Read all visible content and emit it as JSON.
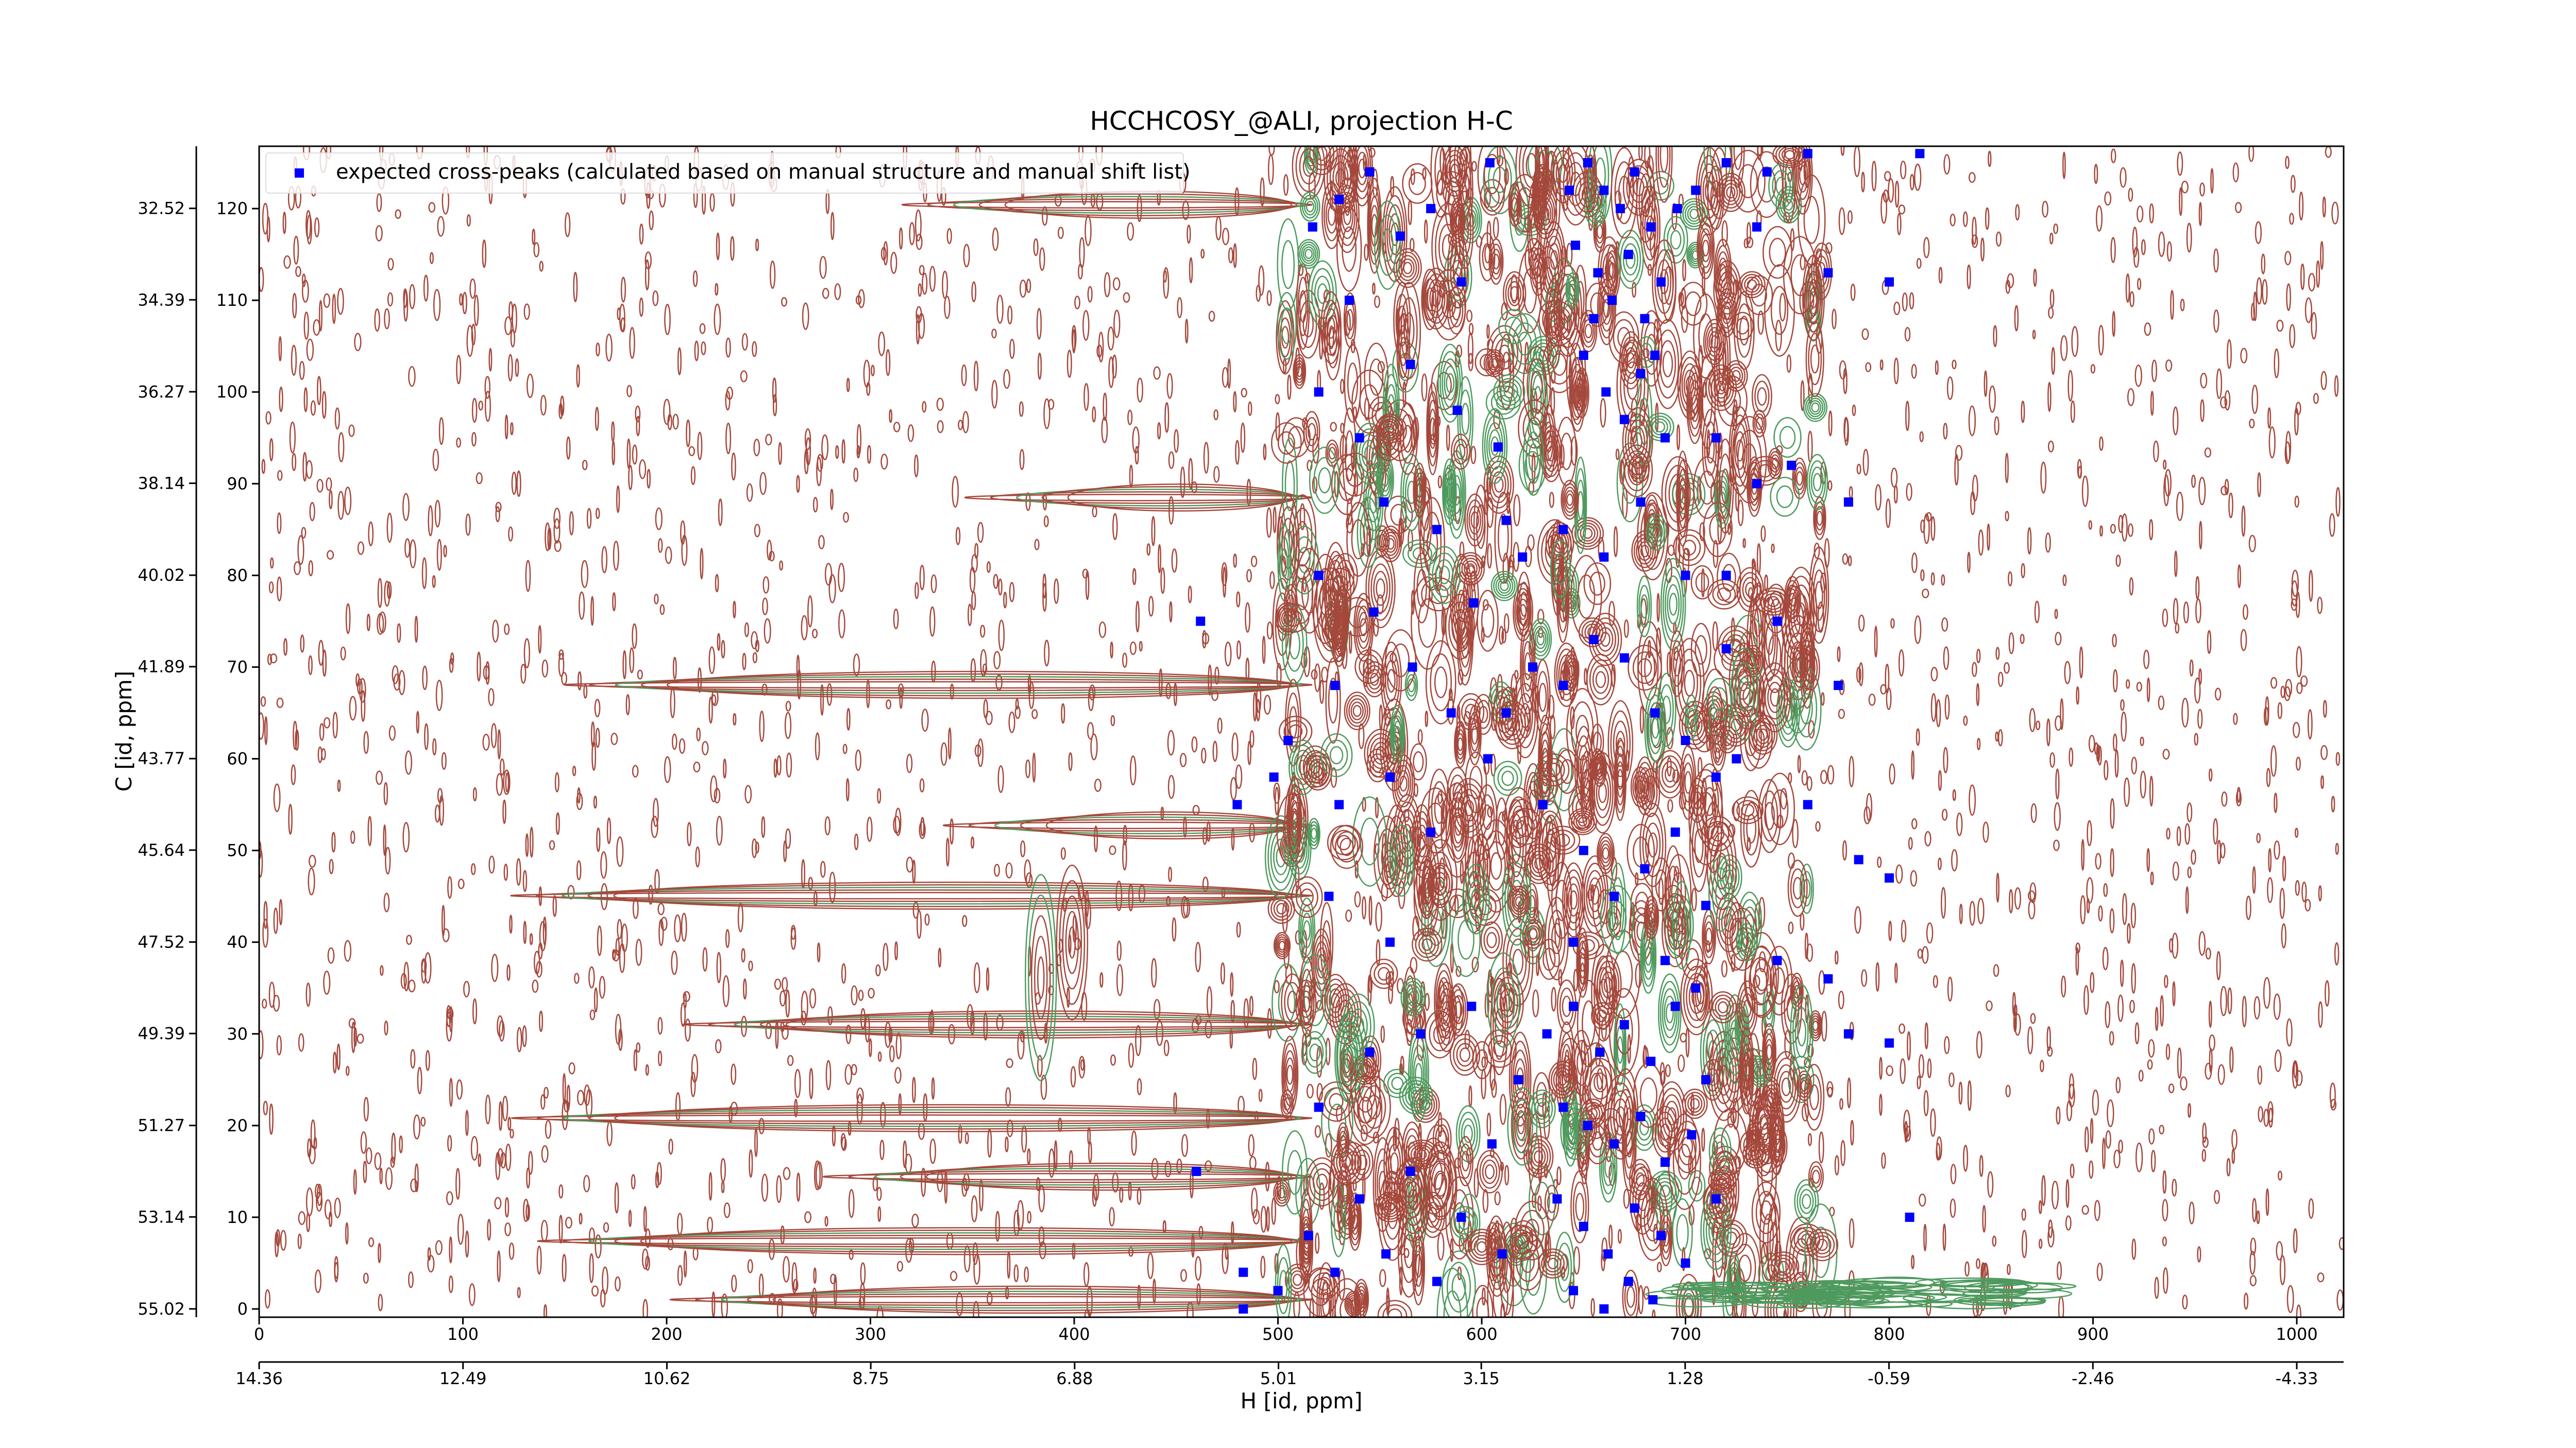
{
  "chart_data": {
    "type": "scatter",
    "title": "HCCHCOSY_@ALI, projection H-C",
    "x_label": "H [id, ppm]",
    "y_label": "C [id, ppm]",
    "xlim": [
      0,
      1023
    ],
    "xticks": [
      0,
      100,
      200,
      300,
      400,
      500,
      600,
      700,
      800,
      900,
      1000
    ],
    "x2lim": [
      14.36,
      -4.76
    ],
    "x2ticks": [
      14.36,
      12.49,
      10.62,
      8.75,
      6.88,
      5.01,
      3.15,
      1.28,
      -0.59,
      -2.46,
      -4.33
    ],
    "ylim": [
      -0.9,
      126.8
    ],
    "yticks": [
      0,
      10,
      20,
      30,
      40,
      50,
      60,
      70,
      80,
      90,
      100,
      110,
      120
    ],
    "y2lim": [
      55.19,
      31.25
    ],
    "y2ticks": [
      55.02,
      53.14,
      51.27,
      49.39,
      47.52,
      45.64,
      43.77,
      41.89,
      40.02,
      38.14,
      36.27,
      34.39,
      32.52
    ],
    "legend": "upper left",
    "series": [
      {
        "name": "expected cross-peaks (calculated based on manual structure and manual shift list)",
        "color": "#0000ff",
        "x": [
          652,
          660,
          668,
          675,
          683,
          646,
          657,
          664,
          672,
          680,
          688,
          650,
          661,
          670,
          678,
          690,
          643,
          696,
          655,
          685,
          517,
          530,
          545,
          560,
          575,
          590,
          604,
          535,
          565,
          588,
          608,
          540,
          552,
          578,
          612,
          520,
          547,
          566,
          596,
          620,
          528,
          585,
          603,
          555,
          575,
          530,
          520,
          505,
          498,
          525,
          555,
          705,
          720,
          740,
          760,
          735,
          770,
          800,
          815,
          715,
          735,
          752,
          780,
          720,
          745,
          775,
          725,
          760,
          785,
          800,
          770,
          780,
          745,
          800,
          810,
          612,
          625,
          640,
          655,
          670,
          685,
          700,
          715,
          630,
          650,
          665,
          680,
          695,
          710,
          640,
          660,
          678,
          700,
          720,
          645,
          690,
          705,
          632,
          645,
          658,
          670,
          683,
          695,
          640,
          652,
          665,
          678,
          690,
          703,
          637,
          650,
          662,
          675,
          688,
          700,
          645,
          660,
          672,
          684,
          710,
          715,
          500,
          515,
          528,
          540,
          553,
          565,
          578,
          590,
          605,
          618,
          520,
          545,
          570,
          595,
          610,
          483,
          483,
          460,
          480,
          462
        ],
        "values": [
          125,
          122,
          120,
          124,
          118,
          116,
          113,
          110,
          115,
          108,
          112,
          104,
          100,
          97,
          102,
          95,
          122,
          120,
          108,
          104,
          118,
          121,
          124,
          117,
          120,
          112,
          125,
          110,
          103,
          98,
          94,
          95,
          88,
          85,
          86,
          80,
          76,
          70,
          77,
          82,
          68,
          65,
          60,
          58,
          52,
          55,
          100,
          62,
          58,
          45,
          40,
          122,
          125,
          124,
          126,
          118,
          113,
          112,
          126,
          95,
          90,
          92,
          88,
          80,
          75,
          68,
          60,
          55,
          49,
          47,
          36,
          30,
          38,
          29,
          10,
          65,
          70,
          68,
          73,
          71,
          65,
          62,
          58,
          55,
          50,
          45,
          48,
          52,
          44,
          85,
          82,
          88,
          80,
          72,
          40,
          38,
          35,
          30,
          33,
          28,
          31,
          27,
          33,
          22,
          20,
          18,
          21,
          16,
          19,
          12,
          9,
          6,
          11,
          8,
          5,
          2,
          0,
          3,
          1,
          25,
          12,
          2,
          8,
          4,
          12,
          6,
          15,
          3,
          10,
          18,
          25,
          22,
          28,
          30,
          33,
          6,
          0,
          4,
          15,
          55,
          75
        ]
      }
    ]
  }
}
